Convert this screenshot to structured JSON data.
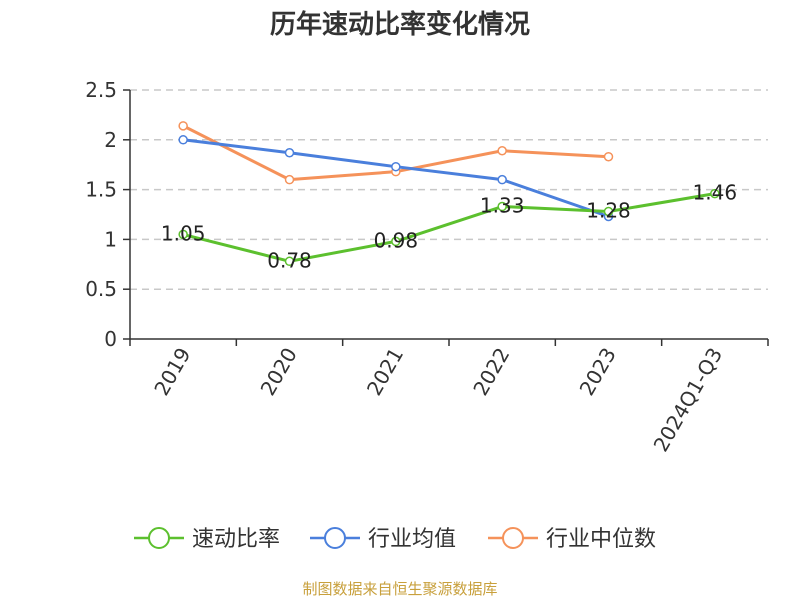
{
  "chart_data": {
    "type": "line",
    "title": "历年速动比率变化情况",
    "categories": [
      "2019",
      "2020",
      "2021",
      "2022",
      "2023",
      "2024Q1-Q3"
    ],
    "ylim": [
      0,
      2.5
    ],
    "yticks": [
      "0",
      "0.5",
      "1",
      "1.5",
      "2",
      "2.5"
    ],
    "grid": true,
    "legend_position": "bottom",
    "series": [
      {
        "name": "速动比率",
        "color": "#5cc02e",
        "values": [
          1.05,
          0.78,
          0.98,
          1.33,
          1.28,
          1.46
        ],
        "labels": [
          "1.05",
          "0.78",
          "0.98",
          "1.33",
          "1.28",
          "1.46"
        ]
      },
      {
        "name": "行业均值",
        "color": "#4a7fdc",
        "values": [
          2.0,
          1.87,
          1.73,
          1.6,
          1.23,
          null
        ]
      },
      {
        "name": "行业中位数",
        "color": "#f5925a",
        "values": [
          2.14,
          1.6,
          1.68,
          1.89,
          1.83,
          null
        ]
      }
    ]
  },
  "source": "制图数据来自恒生聚源数据库"
}
